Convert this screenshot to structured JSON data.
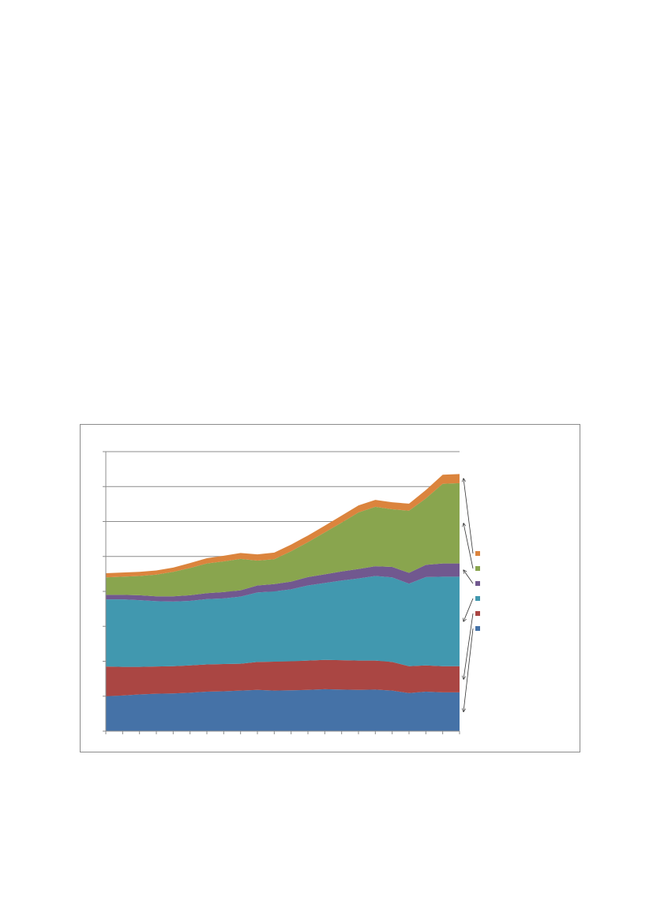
{
  "chart_data": {
    "type": "area",
    "stacked": true,
    "title": "",
    "xlabel": "",
    "ylabel": "",
    "x": [
      1,
      2,
      3,
      4,
      5,
      6,
      7,
      8,
      9,
      10,
      11,
      12,
      13,
      14,
      15,
      16,
      17,
      18,
      19,
      20,
      21,
      22
    ],
    "ylim": [
      0,
      8
    ],
    "y_gridlines": [
      1,
      2,
      3,
      4,
      5,
      6,
      7,
      8
    ],
    "grid": true,
    "legend": "right",
    "series": [
      {
        "color": "#4572A7",
        "values": [
          1.0,
          1.02,
          1.05,
          1.07,
          1.08,
          1.1,
          1.13,
          1.14,
          1.16,
          1.18,
          1.16,
          1.17,
          1.18,
          1.2,
          1.19,
          1.18,
          1.19,
          1.16,
          1.09,
          1.13,
          1.11,
          1.11
        ]
      },
      {
        "color": "#AA4643",
        "values": [
          0.85,
          0.82,
          0.79,
          0.78,
          0.78,
          0.78,
          0.78,
          0.78,
          0.77,
          0.8,
          0.83,
          0.83,
          0.84,
          0.84,
          0.84,
          0.84,
          0.83,
          0.82,
          0.77,
          0.75,
          0.75,
          0.75
        ]
      },
      {
        "color": "#4198AF",
        "values": [
          1.92,
          1.93,
          1.91,
          1.87,
          1.85,
          1.85,
          1.87,
          1.88,
          1.92,
          1.99,
          2.01,
          2.06,
          2.15,
          2.2,
          2.28,
          2.35,
          2.42,
          2.42,
          2.36,
          2.53,
          2.56,
          2.56
        ]
      },
      {
        "color": "#71588F",
        "values": [
          0.13,
          0.13,
          0.14,
          0.14,
          0.15,
          0.16,
          0.17,
          0.18,
          0.18,
          0.2,
          0.21,
          0.22,
          0.24,
          0.25,
          0.26,
          0.27,
          0.28,
          0.3,
          0.31,
          0.35,
          0.38,
          0.38
        ]
      },
      {
        "color": "#89A54E",
        "values": [
          0.5,
          0.52,
          0.55,
          0.62,
          0.7,
          0.78,
          0.85,
          0.88,
          0.9,
          0.71,
          0.71,
          0.87,
          1.0,
          1.2,
          1.4,
          1.62,
          1.7,
          1.65,
          1.78,
          1.9,
          2.28,
          2.3
        ]
      },
      {
        "color": "#DB843D",
        "values": [
          0.12,
          0.12,
          0.12,
          0.12,
          0.12,
          0.14,
          0.15,
          0.16,
          0.17,
          0.18,
          0.19,
          0.19,
          0.19,
          0.19,
          0.2,
          0.2,
          0.2,
          0.2,
          0.2,
          0.24,
          0.26,
          0.26
        ]
      }
    ]
  }
}
